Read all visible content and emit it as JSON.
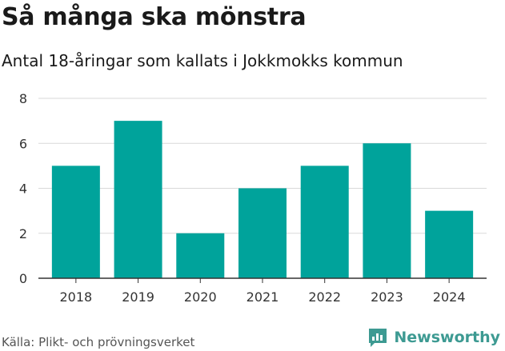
{
  "title": "Så många ska mönstra",
  "subtitle": "Antal 18-åringar som kallats i Jokkmokks kommun",
  "source": "Källa: Plikt- och prövningsverket",
  "brand": {
    "name": "Newsworthy",
    "icon": "newsworthy-logo-icon",
    "color": "#3d9a92"
  },
  "colors": {
    "bar": "#00a39b",
    "grid": "#d9d9d9",
    "axis": "#333333"
  },
  "chart_data": {
    "type": "bar",
    "categories": [
      "2018",
      "2019",
      "2020",
      "2021",
      "2022",
      "2023",
      "2024"
    ],
    "values": [
      5,
      7,
      2,
      4,
      5,
      6,
      3
    ],
    "title": "Så många ska mönstra",
    "subtitle": "Antal 18-åringar som kallats i Jokkmokks kommun",
    "xlabel": "",
    "ylabel": "",
    "ylim": [
      0,
      8
    ],
    "yticks": [
      0,
      2,
      4,
      6,
      8
    ],
    "grid": true,
    "legend": "none"
  }
}
